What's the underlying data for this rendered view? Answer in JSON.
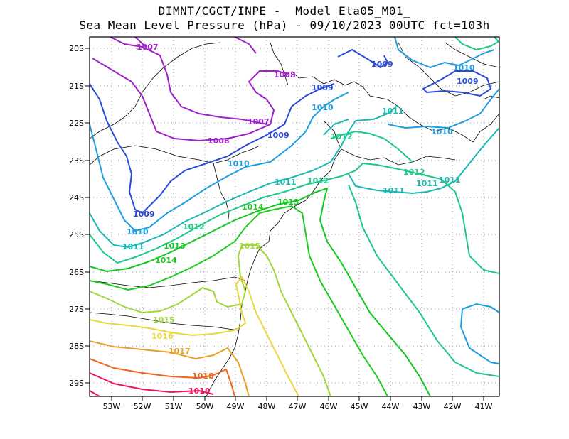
{
  "header": {
    "title_line1": "DIMNT/CGCT/INPE -  Model Eta05_M01_",
    "title_line2": "Sea Mean Level Pressure (hPa) - 09/10/2023 00UTC fct=103h"
  },
  "axes": {
    "lat_labels": [
      "20S",
      "21S",
      "22S",
      "23S",
      "24S",
      "25S",
      "26S",
      "27S",
      "28S",
      "29S"
    ],
    "lon_labels": [
      "53W",
      "52W",
      "51W",
      "50W",
      "49W",
      "48W",
      "47W",
      "46W",
      "45W",
      "44W",
      "43W",
      "42W",
      "41W"
    ]
  },
  "isobars": [
    {
      "value": "1007",
      "color": "#a020c8"
    },
    {
      "value": "1008",
      "color": "#a020c8"
    },
    {
      "value": "1009",
      "color": "#2a4ad8"
    },
    {
      "value": "1010",
      "color": "#1e9ee0"
    },
    {
      "value": "1011",
      "color": "#19b8b0"
    },
    {
      "value": "1012",
      "color": "#1ec88a"
    },
    {
      "value": "1013",
      "color": "#10c81e"
    },
    {
      "value": "1014",
      "color": "#1ecc1e"
    },
    {
      "value": "1015",
      "color": "#a0d83c"
    },
    {
      "value": "1016",
      "color": "#e8d83c"
    },
    {
      "value": "1017",
      "color": "#e8a028"
    },
    {
      "value": "1018",
      "color": "#f0641e"
    },
    {
      "value": "1019",
      "color": "#f01464"
    }
  ],
  "labels": [
    {
      "text": "1007",
      "color": "#a020c8"
    },
    {
      "text": "1008",
      "color": "#a020c8"
    },
    {
      "text": "1007",
      "color": "#a020c8"
    },
    {
      "text": "1008",
      "color": "#a020c8"
    },
    {
      "text": "1009",
      "color": "#2a4ad8"
    },
    {
      "text": "1009",
      "color": "#2a4ad8"
    },
    {
      "text": "1009",
      "color": "#2a4ad8"
    },
    {
      "text": "1009",
      "color": "#2a4ad8"
    },
    {
      "text": "1009",
      "color": "#2a4ad8"
    },
    {
      "text": "1010",
      "color": "#1e9ee0"
    },
    {
      "text": "1010",
      "color": "#1e9ee0"
    },
    {
      "text": "1010",
      "color": "#1e9ee0"
    },
    {
      "text": "1010",
      "color": "#1e9ee0"
    },
    {
      "text": "1010",
      "color": "#1e9ee0"
    },
    {
      "text": "1011",
      "color": "#19b8b0"
    },
    {
      "text": "1011",
      "color": "#19b8b0"
    },
    {
      "text": "1011",
      "color": "#19b8b0"
    },
    {
      "text": "1011",
      "color": "#19b8b0"
    },
    {
      "text": "1011",
      "color": "#19b8b0"
    },
    {
      "text": "1011",
      "color": "#19b8b0"
    },
    {
      "text": "1012",
      "color": "#1ec88a"
    },
    {
      "text": "1012",
      "color": "#1ec88a"
    },
    {
      "text": "1012",
      "color": "#1ec88a"
    },
    {
      "text": "1012",
      "color": "#1ec88a"
    },
    {
      "text": "1013",
      "color": "#10c81e"
    },
    {
      "text": "1013",
      "color": "#10c81e"
    },
    {
      "text": "1014",
      "color": "#1ecc1e"
    },
    {
      "text": "1014",
      "color": "#1ecc1e"
    },
    {
      "text": "1015",
      "color": "#a0d83c"
    },
    {
      "text": "1015",
      "color": "#a0d83c"
    },
    {
      "text": "1016",
      "color": "#e8d83c"
    },
    {
      "text": "1017",
      "color": "#e8a028"
    },
    {
      "text": "1018",
      "color": "#f0641e"
    },
    {
      "text": "1019",
      "color": "#f01464"
    }
  ]
}
